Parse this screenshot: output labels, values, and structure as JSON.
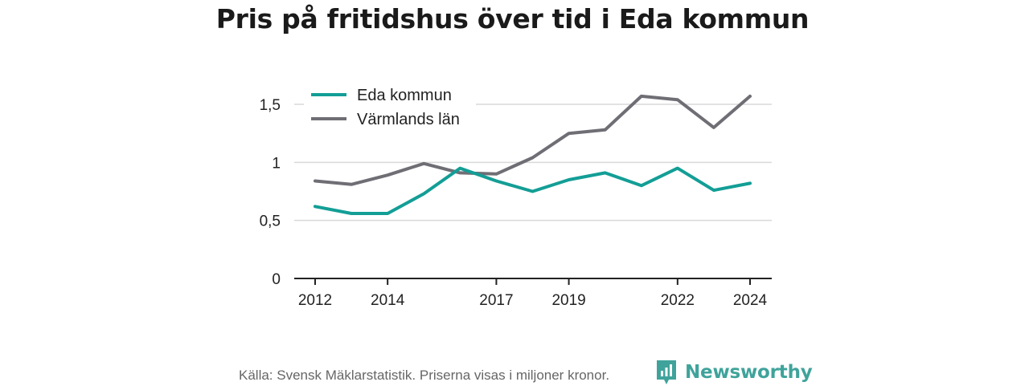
{
  "chart_data": {
    "type": "line",
    "title": "Pris på fritidshus över tid i Eda kommun",
    "x": [
      2012,
      2013,
      2014,
      2015,
      2016,
      2017,
      2018,
      2019,
      2020,
      2021,
      2022,
      2023,
      2024
    ],
    "x_tick_labels": [
      "2012",
      "2014",
      "2017",
      "2019",
      "2022",
      "2024"
    ],
    "x_tick_values": [
      2012,
      2014,
      2017,
      2019,
      2022,
      2024
    ],
    "y_tick_labels": [
      "0",
      "0,5",
      "1",
      "1,5"
    ],
    "y_tick_values": [
      0,
      0.5,
      1,
      1.5
    ],
    "ylim": [
      0,
      1.5
    ],
    "grid": true,
    "legend_position": "top-left",
    "series": [
      {
        "name": "Eda kommun",
        "color": "#139e96",
        "values": [
          0.62,
          0.56,
          0.56,
          0.73,
          0.95,
          0.84,
          0.75,
          0.85,
          0.91,
          0.8,
          0.95,
          0.76,
          0.82
        ]
      },
      {
        "name": "Värmlands län",
        "color": "#6f6e75",
        "values": [
          0.84,
          0.81,
          0.89,
          0.99,
          0.91,
          0.9,
          1.04,
          1.25,
          1.28,
          1.57,
          1.54,
          1.3,
          1.57
        ]
      }
    ]
  },
  "footer": {
    "source": "Källa: Svensk Mäklarstatistik. Priserna visas i miljoner kronor.",
    "brand": "Newsworthy",
    "brand_color": "#3fa39b",
    "logo_icon": "bar-chart-badge-icon"
  }
}
